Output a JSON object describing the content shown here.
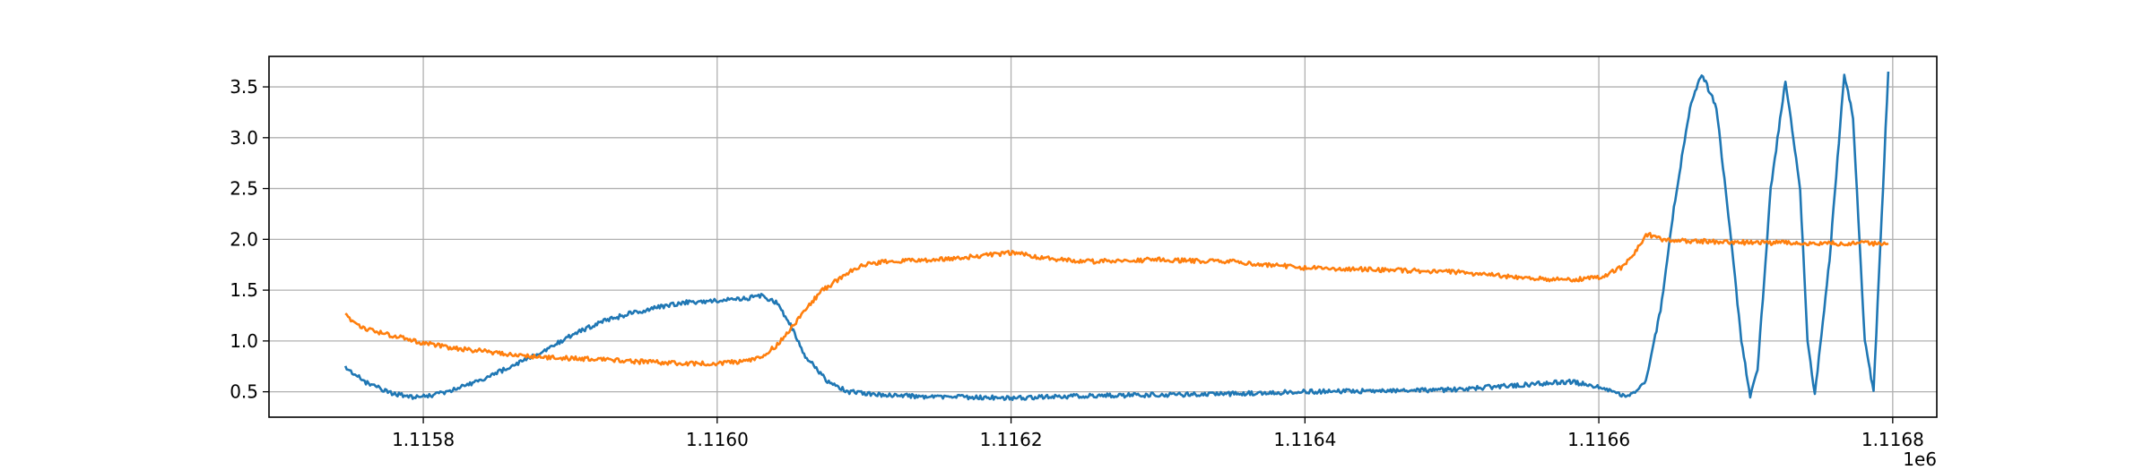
{
  "chart_data": {
    "type": "line",
    "title": "",
    "xlabel": "",
    "ylabel": "",
    "x_offset_label": "1e6",
    "xlim": [
      1115695,
      1116830
    ],
    "ylim": [
      0.25,
      3.8
    ],
    "grid": true,
    "x_ticks": [
      {
        "value": 1115800,
        "label": "1.1158"
      },
      {
        "value": 1116000,
        "label": "1.1160"
      },
      {
        "value": 1116200,
        "label": "1.1162"
      },
      {
        "value": 1116400,
        "label": "1.1164"
      },
      {
        "value": 1116600,
        "label": "1.1166"
      },
      {
        "value": 1116800,
        "label": "1.1168"
      }
    ],
    "y_ticks": [
      {
        "value": 0.5,
        "label": "0.5"
      },
      {
        "value": 1.0,
        "label": "1.0"
      },
      {
        "value": 1.5,
        "label": "1.5"
      },
      {
        "value": 2.0,
        "label": "2.0"
      },
      {
        "value": 2.5,
        "label": "2.5"
      },
      {
        "value": 3.0,
        "label": "3.0"
      },
      {
        "value": 3.5,
        "label": "3.5"
      }
    ],
    "series": [
      {
        "color": "#1f77b4",
        "x": [
          1115747,
          1115760,
          1115775,
          1115790,
          1115805,
          1115820,
          1115840,
          1115860,
          1115880,
          1115900,
          1115920,
          1115940,
          1115960,
          1115980,
          1116000,
          1116020,
          1116030,
          1116040,
          1116050,
          1116060,
          1116075,
          1116090,
          1116110,
          1116150,
          1116200,
          1116250,
          1116300,
          1116350,
          1116400,
          1116450,
          1116500,
          1116550,
          1116580,
          1116600,
          1116620,
          1116632,
          1116642,
          1116652,
          1116662,
          1116670,
          1116680,
          1116690,
          1116697,
          1116703,
          1116708,
          1116717,
          1116727,
          1116737,
          1116742,
          1116747,
          1116757,
          1116767,
          1116773,
          1116781,
          1116787,
          1116797
        ],
        "y": [
          0.74,
          0.6,
          0.5,
          0.45,
          0.46,
          0.52,
          0.62,
          0.75,
          0.88,
          1.05,
          1.18,
          1.27,
          1.33,
          1.38,
          1.4,
          1.42,
          1.45,
          1.38,
          1.15,
          0.85,
          0.6,
          0.5,
          0.47,
          0.45,
          0.44,
          0.46,
          0.47,
          0.48,
          0.5,
          0.51,
          0.52,
          0.57,
          0.6,
          0.55,
          0.45,
          0.6,
          1.3,
          2.4,
          3.3,
          3.63,
          3.3,
          2.0,
          1.0,
          0.45,
          0.7,
          2.5,
          3.57,
          2.5,
          1.0,
          0.47,
          1.8,
          3.62,
          3.2,
          1.0,
          0.5,
          3.65
        ]
      },
      {
        "color": "#ff7f0e",
        "x": [
          1115747,
          1115760,
          1115780,
          1115800,
          1115820,
          1115840,
          1115860,
          1115880,
          1115900,
          1115920,
          1115940,
          1115960,
          1115980,
          1116000,
          1116020,
          1116030,
          1116040,
          1116050,
          1116060,
          1116070,
          1116080,
          1116090,
          1116100,
          1116120,
          1116150,
          1116175,
          1116200,
          1116220,
          1116250,
          1116300,
          1116350,
          1116400,
          1116450,
          1116500,
          1116550,
          1116580,
          1116600,
          1116615,
          1116625,
          1116633,
          1116645,
          1116700,
          1116750,
          1116797
        ],
        "y": [
          1.25,
          1.12,
          1.05,
          0.98,
          0.93,
          0.9,
          0.87,
          0.84,
          0.83,
          0.82,
          0.8,
          0.79,
          0.78,
          0.78,
          0.8,
          0.85,
          0.95,
          1.12,
          1.3,
          1.48,
          1.58,
          1.68,
          1.75,
          1.79,
          1.8,
          1.83,
          1.87,
          1.82,
          1.78,
          1.8,
          1.78,
          1.72,
          1.7,
          1.68,
          1.62,
          1.6,
          1.62,
          1.72,
          1.88,
          2.05,
          1.99,
          1.97,
          1.96,
          1.96
        ]
      }
    ]
  }
}
